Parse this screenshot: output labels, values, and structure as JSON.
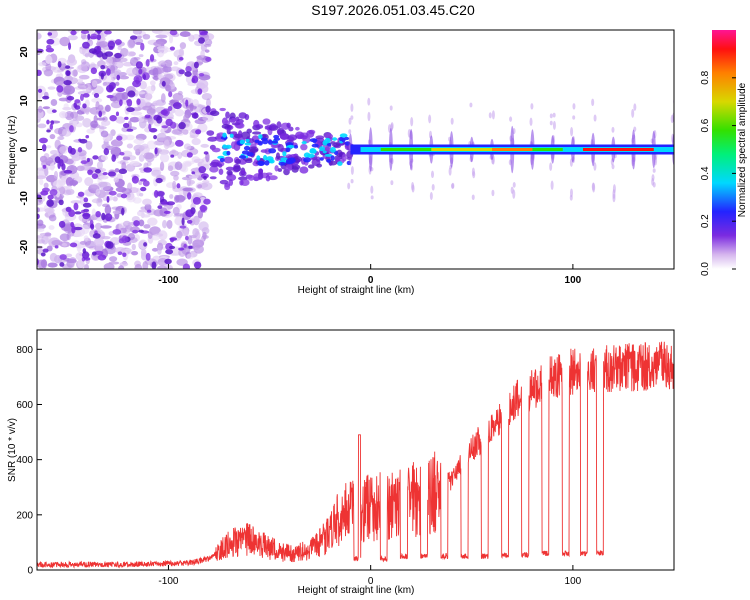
{
  "title": "S197.2026.051.03.45.C20",
  "chart_data": [
    {
      "type": "heatmap",
      "title": "S197.2026.051.03.45.C20",
      "xlabel": "Height of straight line (km)",
      "ylabel": "Frequency (Hz)",
      "xlim": [
        -165,
        150
      ],
      "ylim": [
        -24.5,
        24.5
      ],
      "xticks": [
        -100,
        0,
        100
      ],
      "yticks": [
        -20,
        -10,
        0,
        10,
        20
      ],
      "colorbar": {
        "label": "Normalized spectral amplitude",
        "range": [
          0.0,
          1.0
        ],
        "ticks": [
          "0.0",
          "0.2",
          "0.4",
          "0.6",
          "0.8"
        ],
        "colors": [
          "#ffffff",
          "#d6b6ee",
          "#7b2be0",
          "#2323ff",
          "#00d8ff",
          "#00f07a",
          "#33e000",
          "#d8d800",
          "#ff8000",
          "#ff1010",
          "#ff1493"
        ]
      },
      "ridge_frequency_hz": 0
    },
    {
      "type": "line",
      "xlabel": "Height of straight line (km)",
      "ylabel": "SNR (10 * v/v)",
      "xlim": [
        -165,
        150
      ],
      "ylim": [
        0,
        870
      ],
      "xticks": [
        -100,
        0,
        100
      ],
      "yticks": [
        0,
        200,
        400,
        600,
        800
      ],
      "line_color": "#ee3333",
      "series_envelope": {
        "name": "SNR",
        "x": [
          -165,
          -120,
          -90,
          -80,
          -70,
          -60,
          -50,
          -40,
          -30,
          -20,
          -15,
          -10,
          -5,
          0,
          10,
          20,
          30,
          40,
          45,
          50,
          60,
          70,
          80,
          90,
          100,
          110,
          120,
          130,
          140,
          150
        ],
        "values": [
          20,
          20,
          25,
          40,
          100,
          110,
          80,
          60,
          70,
          130,
          200,
          210,
          220,
          230,
          230,
          250,
          270,
          330,
          380,
          440,
          520,
          600,
          660,
          700,
          720,
          730,
          730,
          735,
          740,
          740
        ]
      },
      "dropouts": {
        "x": [
          -8,
          5,
          15,
          25,
          35,
          45,
          55,
          65,
          75,
          85,
          95,
          104,
          112
        ],
        "values": [
          40,
          40,
          50,
          50,
          50,
          50,
          50,
          55,
          55,
          60,
          60,
          60,
          60
        ]
      }
    }
  ]
}
